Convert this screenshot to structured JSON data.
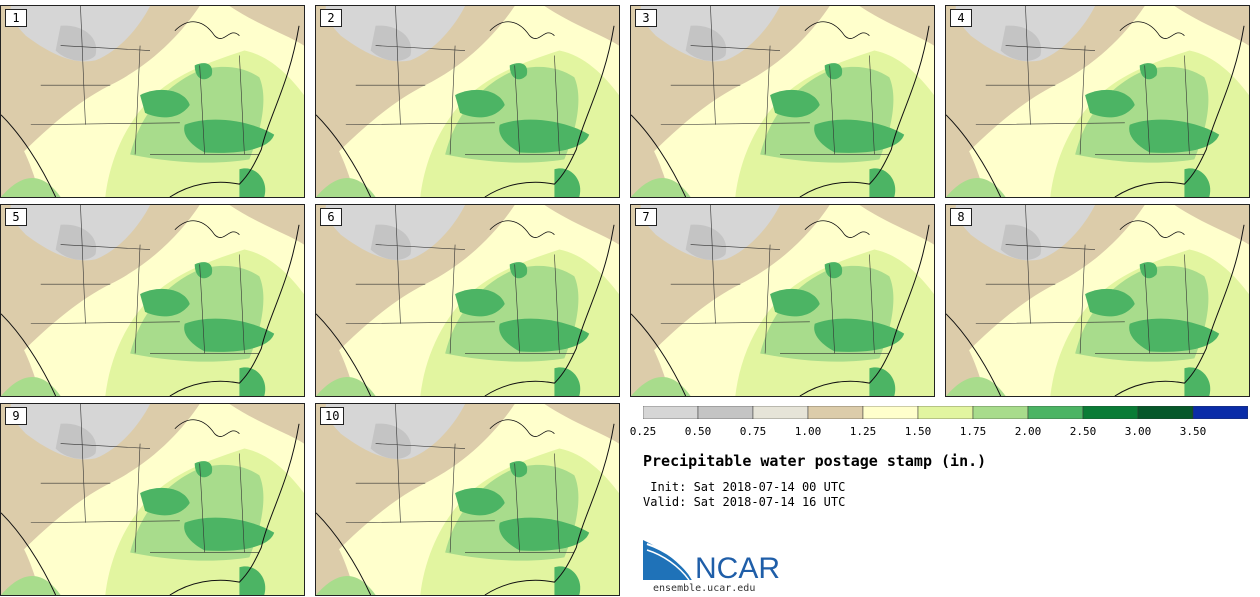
{
  "stamps": [
    {
      "label": "1"
    },
    {
      "label": "2"
    },
    {
      "label": "3"
    },
    {
      "label": "4"
    },
    {
      "label": "5"
    },
    {
      "label": "6"
    },
    {
      "label": "7"
    },
    {
      "label": "8"
    },
    {
      "label": "9"
    },
    {
      "label": "10"
    }
  ],
  "legend": {
    "ticks": [
      "0.25",
      "0.50",
      "0.75",
      "1.00",
      "1.25",
      "1.50",
      "1.75",
      "2.00",
      "2.50",
      "3.00",
      "3.50"
    ],
    "colors": [
      "#d6d6d6",
      "#c4c4c4",
      "#e6e4d8",
      "#dcccaa",
      "#ffffcc",
      "#e2f5a0",
      "#a8dc8c",
      "#4cb464",
      "#0a7c36",
      "#06582a",
      "#0a2ca8"
    ]
  },
  "title": "Precipitable water postage stamp (in.)",
  "init": " Init: Sat 2018-07-14 00 UTC",
  "valid": "Valid: Sat 2018-07-14 16 UTC",
  "logo": {
    "text": "NCAR",
    "color": "#1f5ea8"
  },
  "url": "ensemble.ucar.edu"
}
